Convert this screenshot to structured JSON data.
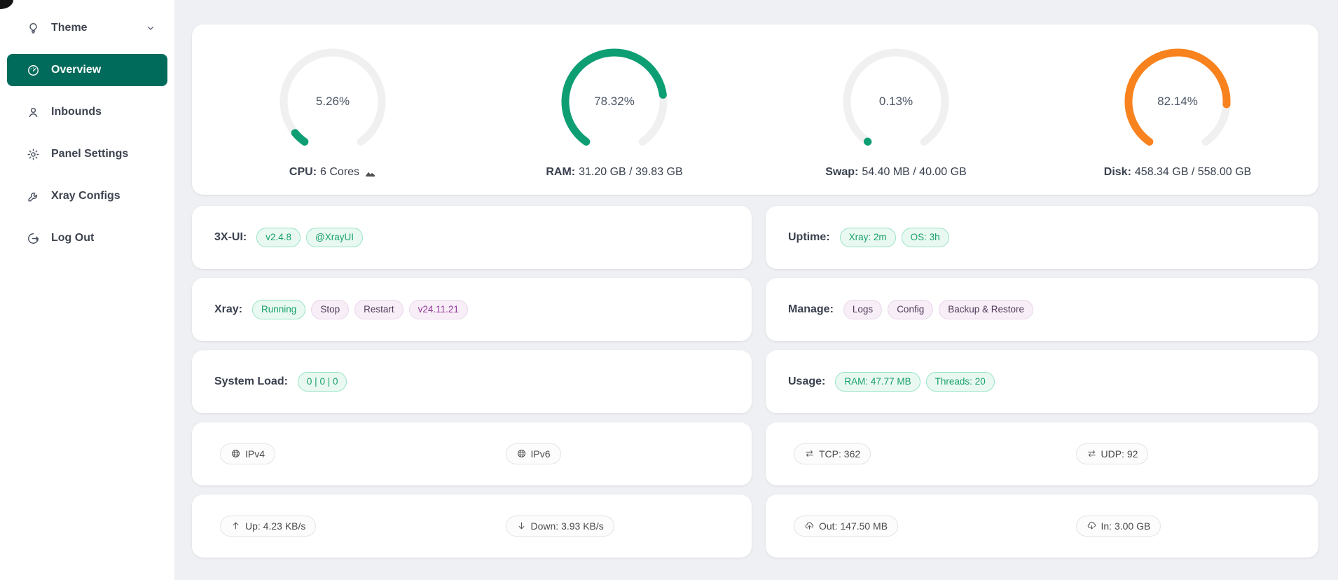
{
  "colors": {
    "sidebar_active_bg": "#006b5b",
    "gauge_green": "#0d9e74",
    "gauge_orange": "#f8821d",
    "gauge_track": "#f0f0f0",
    "page_bg": "#eef0f3"
  },
  "sidebar": {
    "items": [
      {
        "name": "theme",
        "label": "Theme",
        "icon": "bulb-icon",
        "chevron": true,
        "active": false
      },
      {
        "name": "overview",
        "label": "Overview",
        "icon": "dashboard-icon",
        "chevron": false,
        "active": true
      },
      {
        "name": "inbounds",
        "label": "Inbounds",
        "icon": "user-icon",
        "chevron": false,
        "active": false
      },
      {
        "name": "panel-settings",
        "label": "Panel Settings",
        "icon": "gear-icon",
        "chevron": false,
        "active": false
      },
      {
        "name": "xray-configs",
        "label": "Xray Configs",
        "icon": "wrench-icon",
        "chevron": false,
        "active": false
      },
      {
        "name": "log-out",
        "label": "Log Out",
        "icon": "logout-icon",
        "chevron": false,
        "active": false
      }
    ]
  },
  "gauges": [
    {
      "name": "cpu-gauge",
      "percent_label": "5.26%",
      "value": 5.26,
      "color": "#0d9e74",
      "label_bold": "CPU:",
      "label_text": "6 Cores",
      "trailing_icon": "area-chart-icon"
    },
    {
      "name": "ram-gauge",
      "percent_label": "78.32%",
      "value": 78.32,
      "color": "#0d9e74",
      "label_bold": "RAM:",
      "label_text": "31.20 GB / 39.83 GB"
    },
    {
      "name": "swap-gauge",
      "percent_label": "0.13%",
      "value": 0.13,
      "color": "#0d9e74",
      "label_bold": "Swap:",
      "label_text": "54.40 MB / 40.00 GB"
    },
    {
      "name": "disk-gauge",
      "percent_label": "82.14%",
      "value": 82.14,
      "color": "#f8821d",
      "label_bold": "Disk:",
      "label_text": "458.34 GB / 558.00 GB"
    }
  ],
  "stat_rows": [
    {
      "left": {
        "name": "panel-info-card",
        "label": "3X-UI:",
        "tags": [
          {
            "name": "panel-version-tag",
            "text": "v2.4.8",
            "style": "mint",
            "interactable": true
          },
          {
            "name": "telegram-channel-tag",
            "text": "@XrayUI",
            "style": "mint",
            "interactable": true
          }
        ]
      },
      "right": {
        "name": "uptime-card",
        "label": "Uptime:",
        "tags": [
          {
            "name": "xray-uptime-tag",
            "text": "Xray: 2m",
            "style": "mint",
            "interactable": false
          },
          {
            "name": "os-uptime-tag",
            "text": "OS: 3h",
            "style": "mint",
            "interactable": false
          }
        ]
      }
    },
    {
      "left": {
        "name": "xray-control-card",
        "label": "Xray:",
        "tags": [
          {
            "name": "xray-status-tag",
            "text": "Running",
            "style": "mint",
            "interactable": false
          },
          {
            "name": "xray-stop-button",
            "text": "Stop",
            "style": "purple",
            "interactable": true
          },
          {
            "name": "xray-restart-button",
            "text": "Restart",
            "style": "purple",
            "interactable": true
          },
          {
            "name": "xray-version-tag",
            "text": "v24.11.21",
            "style": "purple-ver",
            "interactable": true
          }
        ]
      },
      "right": {
        "name": "manage-card",
        "label": "Manage:",
        "tags": [
          {
            "name": "logs-button",
            "text": "Logs",
            "style": "purple",
            "interactable": true
          },
          {
            "name": "config-button",
            "text": "Config",
            "style": "purple",
            "interactable": true
          },
          {
            "name": "backup-restore-button",
            "text": "Backup & Restore",
            "style": "purple",
            "interactable": true
          }
        ]
      }
    },
    {
      "left": {
        "name": "system-load-card",
        "label": "System Load:",
        "tags": [
          {
            "name": "system-load-tag",
            "text": "0 | 0 | 0",
            "style": "mint",
            "interactable": false
          }
        ]
      },
      "right": {
        "name": "usage-card",
        "label": "Usage:",
        "tags": [
          {
            "name": "ram-usage-tag",
            "text": "RAM: 47.77 MB",
            "style": "mint",
            "interactable": false
          },
          {
            "name": "threads-tag",
            "text": "Threads: 20",
            "style": "mint",
            "interactable": false
          }
        ]
      }
    },
    {
      "left": {
        "name": "ip-card",
        "split": true,
        "tags": [
          {
            "name": "ipv4-tag",
            "text": "IPv4",
            "icon": "globe-icon",
            "style": "gray",
            "interactable": false
          },
          {
            "name": "ipv6-tag",
            "text": "IPv6",
            "icon": "globe-icon",
            "style": "gray",
            "interactable": false
          }
        ]
      },
      "right": {
        "name": "connections-card",
        "split": true,
        "tags": [
          {
            "name": "tcp-connections-tag",
            "text": "TCP: 362",
            "icon": "swap-icon",
            "style": "gray",
            "interactable": false
          },
          {
            "name": "udp-connections-tag",
            "text": "UDP: 92",
            "icon": "swap-icon",
            "style": "gray",
            "interactable": false
          }
        ]
      }
    },
    {
      "left": {
        "name": "speed-card",
        "split": true,
        "tags": [
          {
            "name": "upload-speed-tag",
            "text": "Up: 4.23 KB/s",
            "icon": "arrow-up-icon",
            "style": "gray",
            "interactable": false
          },
          {
            "name": "download-speed-tag",
            "text": "Down: 3.93 KB/s",
            "icon": "arrow-down-icon",
            "style": "gray",
            "interactable": false
          }
        ]
      },
      "right": {
        "name": "traffic-card",
        "split": true,
        "tags": [
          {
            "name": "traffic-out-tag",
            "text": "Out: 147.50 MB",
            "icon": "cloud-upload-icon",
            "style": "gray",
            "interactable": false
          },
          {
            "name": "traffic-in-tag",
            "text": "In: 3.00 GB",
            "icon": "cloud-download-icon",
            "style": "gray",
            "interactable": false
          }
        ]
      }
    }
  ]
}
